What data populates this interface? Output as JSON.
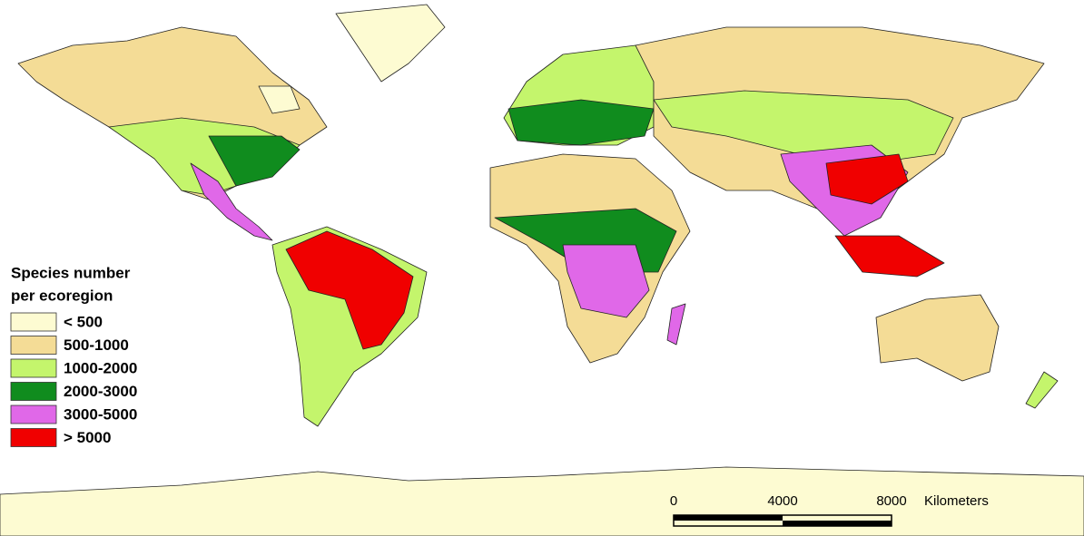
{
  "legend": {
    "title_lines": [
      "Species number",
      "per ecoregion"
    ],
    "items": [
      {
        "label": "< 500",
        "color": "#fdfbd2"
      },
      {
        "label": "500-1000",
        "color": "#f4dc96"
      },
      {
        "label": "1000-2000",
        "color": "#c4f56c"
      },
      {
        "label": "2000-3000",
        "color": "#108c1e"
      },
      {
        "label": "3000-5000",
        "color": "#e068e8"
      },
      {
        "label": "> 5000",
        "color": "#f00000"
      }
    ]
  },
  "scale_bar": {
    "labels": [
      "0",
      "4000",
      "8000"
    ],
    "unit": "Kilometers"
  }
}
